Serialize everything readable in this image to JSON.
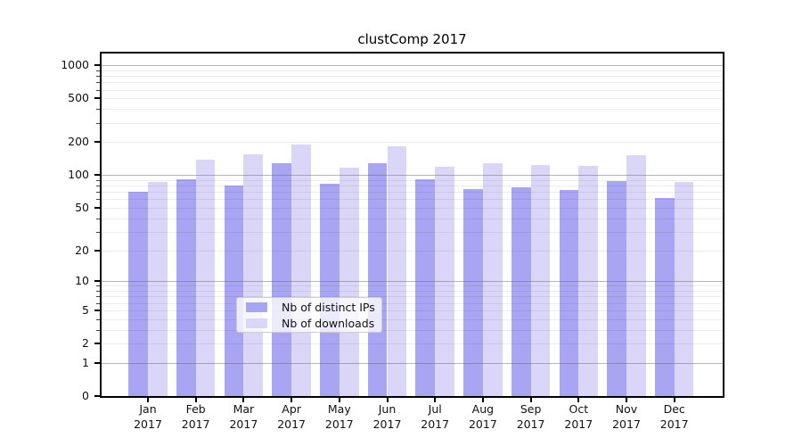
{
  "title": "clustComp 2017",
  "chart_data": {
    "type": "bar",
    "title": "clustComp 2017",
    "categories": [
      "Jan",
      "Feb",
      "Mar",
      "Apr",
      "May",
      "Jun",
      "Jul",
      "Aug",
      "Sep",
      "Oct",
      "Nov",
      "Dec"
    ],
    "year_label": "2017",
    "series": [
      {
        "name": "Nb of distinct IPs",
        "color": "#a8a5f3",
        "values": [
          70,
          92,
          81,
          129,
          83,
          128,
          92,
          75,
          77,
          73,
          88,
          62
        ]
      },
      {
        "name": "Nb of downloads",
        "color": "#d9d6f8",
        "values": [
          86,
          138,
          154,
          191,
          118,
          182,
          119,
          129,
          124,
          122,
          151,
          87
        ]
      }
    ],
    "yscale": "log1p",
    "yticks": [
      0,
      1,
      2,
      5,
      10,
      20,
      50,
      100,
      200,
      500,
      1000
    ],
    "ylim": [
      0,
      1280
    ],
    "grid": {
      "major_lines": [
        1,
        10,
        100,
        1000
      ],
      "minor_decades": [
        1,
        10,
        100
      ]
    },
    "legend_position": "lower center",
    "xlabel": "",
    "ylabel": ""
  }
}
